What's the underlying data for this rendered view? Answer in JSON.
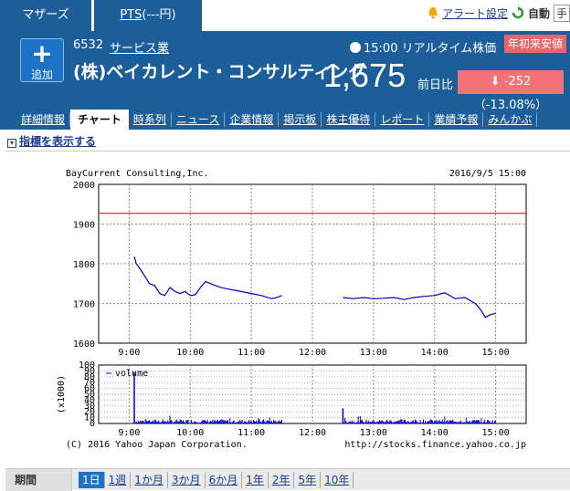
{
  "tabs": {
    "market": "マザーズ",
    "pts": "PTS",
    "pts_suffix": "(---円)"
  },
  "top_right": {
    "alert": "アラート設定",
    "auto": "自動",
    "extra": "手"
  },
  "header": {
    "add_label": "追加",
    "code": "6532",
    "industry": "サービス業",
    "company": "(株)ベイカレント・コンサルティング",
    "realtime": "15:00 リアルタイム株価",
    "badge": "年初来安値",
    "price": "1,675",
    "prev_label": "前日比",
    "change": "-252（-13.08%）"
  },
  "subnav": [
    "詳細情報",
    "チャート",
    "時系列",
    "ニュース",
    "企業情報",
    "掲示板",
    "株主優待",
    "レポート",
    "業績予報",
    "みんかぶ"
  ],
  "indicator": "指標を表示する",
  "chart_data": {
    "type": "line",
    "title_left": "BayCurrent Consulting,Inc.",
    "title_right": "2016/9/5 15:00",
    "x_ticks": [
      "9:00",
      "10:00",
      "11:00",
      "12:00",
      "13:00",
      "14:00",
      "15:00"
    ],
    "y_ticks": [
      "1600",
      "1700",
      "1800",
      "1900",
      "2000"
    ],
    "ylim": [
      1600,
      2000
    ],
    "prev_close": 1927,
    "series": [
      {
        "segment": "morning",
        "x": [
          "9:05",
          "9:07",
          "9:10",
          "9:15",
          "9:20",
          "9:25",
          "9:30",
          "9:35",
          "9:40",
          "9:45",
          "9:50",
          "9:55",
          "10:00",
          "10:05",
          "10:10",
          "10:15",
          "10:20",
          "10:25",
          "10:30",
          "10:40",
          "10:50",
          "11:00",
          "11:10",
          "11:20",
          "11:25",
          "11:30"
        ],
        "y": [
          1818,
          1800,
          1790,
          1770,
          1750,
          1745,
          1725,
          1720,
          1740,
          1730,
          1725,
          1730,
          1720,
          1722,
          1740,
          1755,
          1750,
          1745,
          1740,
          1735,
          1730,
          1725,
          1720,
          1712,
          1715,
          1720
        ]
      },
      {
        "segment": "afternoon",
        "x": [
          "12:30",
          "12:40",
          "12:50",
          "13:00",
          "13:10",
          "13:20",
          "13:30",
          "13:40",
          "13:50",
          "14:00",
          "14:10",
          "14:15",
          "14:20",
          "14:30",
          "14:40",
          "14:45",
          "14:50",
          "14:55",
          "15:00"
        ],
        "y": [
          1715,
          1712,
          1715,
          1712,
          1713,
          1715,
          1710,
          1715,
          1718,
          1720,
          1727,
          1720,
          1712,
          1715,
          1700,
          1685,
          1665,
          1672,
          1675
        ]
      }
    ],
    "volume": {
      "label": "volume",
      "y_unit_label": "(x1000)",
      "ylim": [
        0,
        100
      ],
      "y_ticks": [
        "0",
        "10",
        "20",
        "30",
        "40",
        "50",
        "60",
        "70",
        "80",
        "90",
        "100"
      ],
      "spikes": [
        {
          "x": "9:05",
          "v": 88
        },
        {
          "x": "12:30",
          "v": 26
        }
      ]
    },
    "footer_left": "(C) 2016 Yahoo Japan Corporation.",
    "footer_right": "http://stocks.finance.yahoo.co.jp"
  },
  "period": {
    "label": "期間",
    "items": [
      "1日",
      "1週",
      "1か月",
      "3か月",
      "6か月",
      "1年",
      "2年",
      "5年",
      "10年"
    ],
    "selected": 0
  },
  "colors": {
    "header": "#1c5e9a",
    "badge": "#e8676b",
    "change": "#f37379",
    "line": "#0000c0",
    "prev_close": "#e00000"
  }
}
